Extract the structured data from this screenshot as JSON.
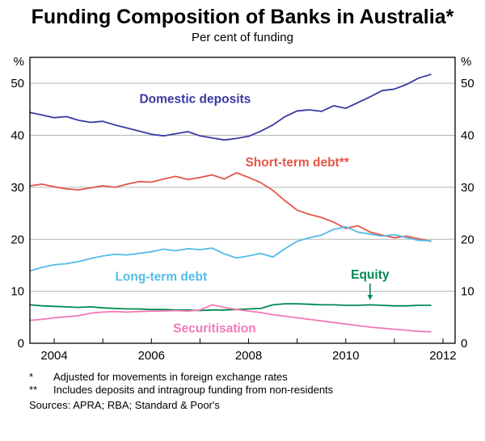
{
  "header": {
    "title": "Funding Composition of Banks in Australia*",
    "subtitle": "Per cent of funding"
  },
  "chart_data": {
    "type": "line",
    "title": "Funding Composition of Banks in Australia*",
    "subtitle": "Per cent of funding",
    "xlabel": "",
    "ylabel": "%",
    "unit": "%",
    "legend": "inline-labels",
    "grid": "horizontal",
    "grid_color": "#b5b5b5",
    "xlim": [
      2003.5,
      2012.25
    ],
    "ylim": [
      0,
      55
    ],
    "yticks": [
      0,
      10,
      20,
      30,
      40,
      50
    ],
    "xticks": [
      2004,
      2006,
      2008,
      2010,
      2012
    ],
    "x": [
      2003.5,
      2003.75,
      2004,
      2004.25,
      2004.5,
      2004.75,
      2005,
      2005.25,
      2005.5,
      2005.75,
      2006,
      2006.25,
      2006.5,
      2006.75,
      2007,
      2007.25,
      2007.5,
      2007.75,
      2008,
      2008.25,
      2008.5,
      2008.75,
      2009,
      2009.25,
      2009.5,
      2009.75,
      2010,
      2010.25,
      2010.5,
      2010.75,
      2011,
      2011.25,
      2011.5,
      2011.75
    ],
    "series": [
      {
        "name": "Domestic deposits",
        "color": "#3a3aa2",
        "values": [
          44.4,
          43.9,
          43.4,
          43.6,
          42.9,
          42.5,
          42.7,
          42.0,
          41.4,
          40.8,
          40.2,
          39.9,
          40.3,
          40.7,
          39.9,
          39.5,
          39.1,
          39.4,
          39.8,
          40.8,
          42.0,
          43.6,
          44.7,
          44.9,
          44.6,
          45.7,
          45.2,
          46.3,
          47.4,
          48.6,
          48.9,
          49.8,
          51.0,
          51.7
        ]
      },
      {
        "name": "Short-term debt**",
        "color": "#e35549",
        "values": [
          30.3,
          30.6,
          30.1,
          29.7,
          29.5,
          29.9,
          30.3,
          30.0,
          30.6,
          31.1,
          31.0,
          31.6,
          32.1,
          31.5,
          31.9,
          32.4,
          31.6,
          32.8,
          31.9,
          30.9,
          29.4,
          27.4,
          25.6,
          24.8,
          24.2,
          23.3,
          22.1,
          22.6,
          21.4,
          20.8,
          20.3,
          20.6,
          20.1,
          19.6
        ]
      },
      {
        "name": "Long-term debt",
        "color": "#54bce8",
        "values": [
          13.9,
          14.6,
          15.1,
          15.3,
          15.7,
          16.3,
          16.8,
          17.1,
          17.0,
          17.3,
          17.6,
          18.1,
          17.8,
          18.2,
          18.0,
          18.3,
          17.2,
          16.4,
          16.8,
          17.3,
          16.6,
          18.2,
          19.6,
          20.3,
          20.8,
          21.9,
          22.4,
          21.4,
          21.0,
          20.6,
          20.9,
          20.3,
          19.8,
          19.7
        ]
      },
      {
        "name": "Equity",
        "color": "#008a50",
        "values": [
          7.4,
          7.2,
          7.1,
          7.0,
          6.9,
          7.0,
          6.8,
          6.7,
          6.6,
          6.6,
          6.5,
          6.5,
          6.4,
          6.4,
          6.3,
          6.4,
          6.4,
          6.5,
          6.6,
          6.7,
          7.4,
          7.6,
          7.6,
          7.5,
          7.4,
          7.4,
          7.3,
          7.3,
          7.4,
          7.3,
          7.2,
          7.2,
          7.3,
          7.3
        ]
      },
      {
        "name": "Securitisation",
        "color": "#f279b5",
        "values": [
          4.4,
          4.6,
          4.9,
          5.1,
          5.3,
          5.8,
          6.0,
          6.1,
          6.0,
          6.1,
          6.2,
          6.2,
          6.3,
          6.2,
          6.4,
          7.4,
          6.9,
          6.5,
          6.2,
          5.9,
          5.5,
          5.2,
          4.9,
          4.6,
          4.3,
          4.0,
          3.7,
          3.4,
          3.1,
          2.9,
          2.7,
          2.5,
          2.3,
          2.2
        ]
      }
    ],
    "annotations": [
      {
        "text": "Domestic deposits",
        "x": 2006.9,
        "y": 47.0,
        "color": "#3a3aa2"
      },
      {
        "text": "Short-term debt**",
        "x": 2009.0,
        "y": 34.8,
        "color": "#e35549"
      },
      {
        "text": "Long-term debt",
        "x": 2006.2,
        "y": 12.8,
        "color": "#54bce8"
      },
      {
        "text": "Equity",
        "x": 2010.5,
        "y": 13.2,
        "color": "#008a50"
      },
      {
        "text": "Securitisation",
        "x": 2007.3,
        "y": 2.9,
        "color": "#f279b5"
      }
    ],
    "arrow": {
      "x": 2010.5,
      "from_y": 11.5,
      "to_y": 8.3,
      "color": "#008a50"
    }
  },
  "footnotes": [
    {
      "marker": "*",
      "text": "Adjusted for movements in foreign exchange rates"
    },
    {
      "marker": "**",
      "text": "Includes deposits and intragroup funding from non-residents"
    }
  ],
  "sources": "Sources: APRA; RBA; Standard & Poor's"
}
